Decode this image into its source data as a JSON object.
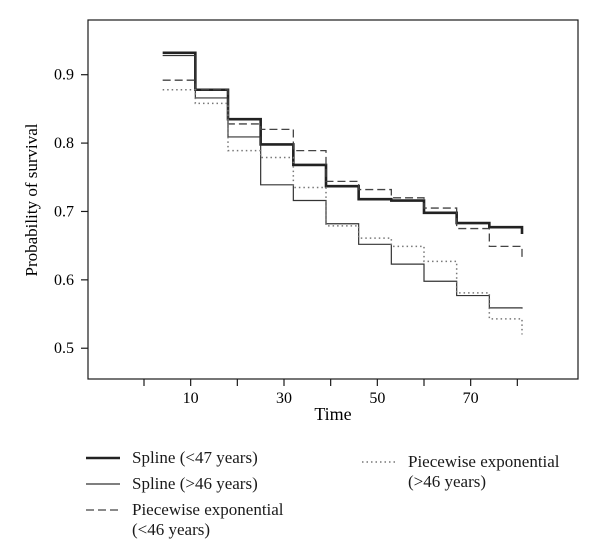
{
  "chart_data": {
    "type": "line",
    "step": true,
    "xlabel": "Time",
    "ylabel": "Probability of survival",
    "xticks": [
      10,
      30,
      50,
      70
    ],
    "yticks": [
      0.5,
      0.6,
      0.7,
      0.8,
      0.9
    ],
    "xlim": [
      -12,
      93
    ],
    "ylim": [
      0.455,
      0.98
    ],
    "minor_xticks": [
      0,
      20,
      40,
      60,
      80
    ],
    "series": [
      {
        "name": "Spline (<47 years)",
        "style": "solid-thick",
        "color": "#222222",
        "x": [
          4,
          11,
          18,
          25,
          32,
          39,
          46,
          53,
          60,
          67,
          74,
          81
        ],
        "y": [
          0.932,
          0.878,
          0.835,
          0.798,
          0.768,
          0.737,
          0.718,
          0.716,
          0.698,
          0.683,
          0.677,
          0.667
        ]
      },
      {
        "name": "Spline (>46 years)",
        "style": "solid-thin",
        "color": "#333333",
        "x": [
          4,
          11,
          18,
          25,
          32,
          39,
          46,
          53,
          60,
          67,
          74,
          81
        ],
        "y": [
          0.928,
          0.866,
          0.809,
          0.739,
          0.716,
          0.682,
          0.652,
          0.623,
          0.598,
          0.577,
          0.559,
          0.558
        ]
      },
      {
        "name": "Piecewise exponential\n(<46 years)",
        "style": "dashed",
        "color": "#444444",
        "x": [
          4,
          11,
          18,
          25,
          32,
          39,
          46,
          53,
          60,
          67,
          74,
          81
        ],
        "y": [
          0.892,
          0.878,
          0.828,
          0.82,
          0.789,
          0.744,
          0.732,
          0.72,
          0.705,
          0.675,
          0.649,
          0.628
        ]
      },
      {
        "name": "Piecewise exponential\n(>46 years)",
        "style": "dotted",
        "color": "#777777",
        "x": [
          4,
          11,
          18,
          25,
          32,
          39,
          46,
          53,
          60,
          67,
          74,
          81
        ],
        "y": [
          0.878,
          0.858,
          0.789,
          0.779,
          0.735,
          0.679,
          0.661,
          0.649,
          0.627,
          0.581,
          0.543,
          0.52
        ]
      }
    ]
  }
}
